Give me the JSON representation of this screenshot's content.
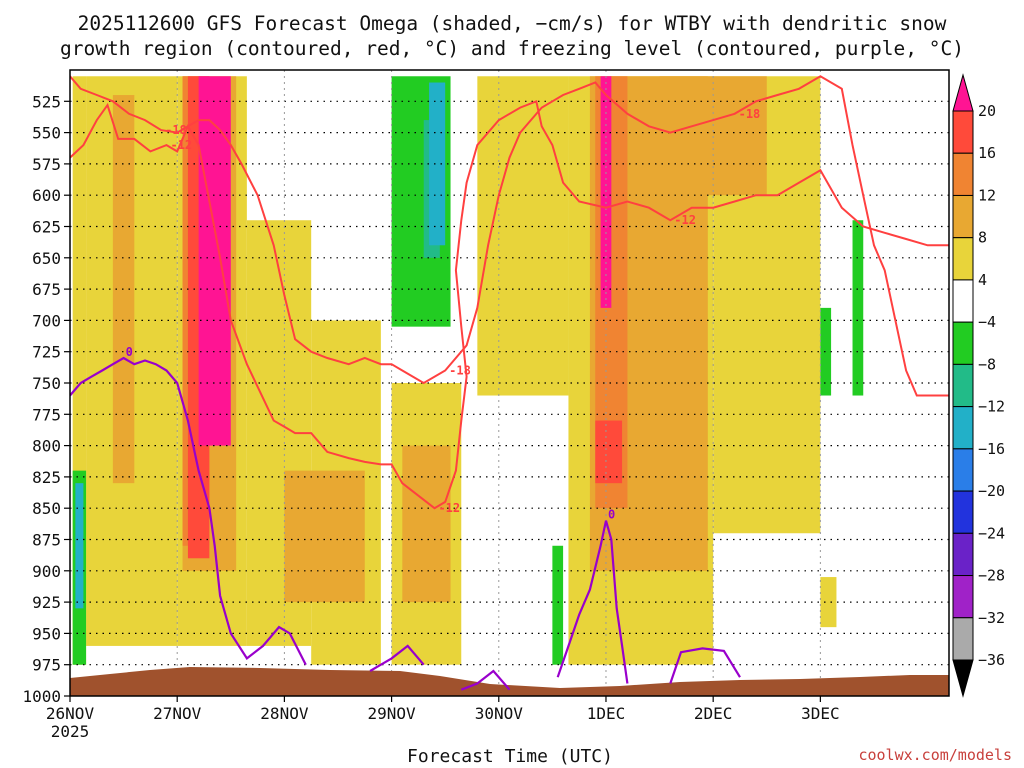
{
  "chart_data": {
    "type": "time-height contour plot",
    "title_lines": [
      "2025112600 GFS Forecast Omega (shaded, −cm/s) for WTBY with dendritic snow",
      "growth region (contoured, red, °C) and freezing level (contoured, purple, °C)"
    ],
    "xlabel": "Forecast Time (UTC)",
    "ylabel": "",
    "credit": "coolwx.com/models",
    "x_range_hours": [
      0,
      164
    ],
    "x_ticks": [
      {
        "hour": 0,
        "label": "26NOV",
        "sublabel": "2025"
      },
      {
        "hour": 20,
        "label": "27NOV"
      },
      {
        "hour": 40,
        "label": "28NOV"
      },
      {
        "hour": 60,
        "label": "29NOV"
      },
      {
        "hour": 80,
        "label": "30NOV"
      },
      {
        "hour": 100,
        "label": "1DEC"
      },
      {
        "hour": 120,
        "label": "2DEC"
      },
      {
        "hour": 140,
        "label": "3DEC"
      }
    ],
    "y_range_hpa": [
      500,
      1000
    ],
    "y_ticks": [
      "525",
      "550",
      "575",
      "600",
      "625",
      "650",
      "675",
      "700",
      "725",
      "750",
      "775",
      "800",
      "825",
      "850",
      "875",
      "900",
      "925",
      "950",
      "975",
      "1000"
    ],
    "colorbar": {
      "labels": [
        "20",
        "16",
        "12",
        "8",
        "4",
        "−4",
        "−8",
        "−12",
        "−16",
        "−20",
        "−24",
        "−28",
        "−32",
        "−36"
      ],
      "colors": [
        "#ff1493",
        "#ff4a3a",
        "#f08432",
        "#e8a832",
        "#e8d43a",
        "#ffffff",
        "#22cc22",
        "#22bb88",
        "#22b0c8",
        "#2a7ee8",
        "#2233dd",
        "#6a22c8",
        "#a022c8",
        "#aaaaaa",
        "#000000"
      ]
    },
    "omega_regions": [
      {
        "color": "#e8d43a",
        "t0": 0.5,
        "t1": 3,
        "p0": 505,
        "p1": 975
      },
      {
        "color": "#e8d43a",
        "t0": 3,
        "t1": 20,
        "p0": 505,
        "p1": 960
      },
      {
        "color": "#e8a832",
        "t0": 8,
        "t1": 12,
        "p0": 520,
        "p1": 830
      },
      {
        "color": "#e8d43a",
        "t0": 20,
        "t1": 33,
        "p0": 505,
        "p1": 960
      },
      {
        "color": "#e8a832",
        "t0": 21,
        "t1": 31,
        "p0": 505,
        "p1": 900
      },
      {
        "color": "#f08432",
        "t0": 21,
        "t1": 26,
        "p0": 505,
        "p1": 880
      },
      {
        "color": "#ff4a3a",
        "t0": 22,
        "t1": 26,
        "p0": 505,
        "p1": 890
      },
      {
        "color": "#ff1493",
        "t0": 24,
        "t1": 30,
        "p0": 505,
        "p1": 800
      },
      {
        "color": "#e8d43a",
        "t0": 33,
        "t1": 45,
        "p0": 620,
        "p1": 960
      },
      {
        "color": "#e8d43a",
        "t0": 45,
        "t1": 58,
        "p0": 700,
        "p1": 975
      },
      {
        "color": "#e8a832",
        "t0": 40,
        "t1": 55,
        "p0": 820,
        "p1": 925
      },
      {
        "color": "#e8d43a",
        "t0": 60,
        "t1": 73,
        "p0": 750,
        "p1": 975
      },
      {
        "color": "#e8a832",
        "t0": 62,
        "t1": 71,
        "p0": 800,
        "p1": 925
      },
      {
        "color": "#22cc22",
        "t0": 60,
        "t1": 71,
        "p0": 505,
        "p1": 705
      },
      {
        "color": "#22bb88",
        "t0": 66,
        "t1": 69,
        "p0": 540,
        "p1": 650
      },
      {
        "color": "#22b0c8",
        "t0": 67,
        "t1": 70,
        "p0": 510,
        "p1": 640
      },
      {
        "color": "#e8d43a",
        "t0": 76,
        "t1": 93,
        "p0": 505,
        "p1": 760
      },
      {
        "color": "#e8d43a",
        "t0": 93,
        "t1": 120,
        "p0": 505,
        "p1": 975
      },
      {
        "color": "#e8a832",
        "t0": 97,
        "t1": 119,
        "p0": 505,
        "p1": 900
      },
      {
        "color": "#f08432",
        "t0": 98,
        "t1": 104,
        "p0": 505,
        "p1": 850
      },
      {
        "color": "#ff4a3a",
        "t0": 98,
        "t1": 103,
        "p0": 780,
        "p1": 830
      },
      {
        "color": "#ff1493",
        "t0": 99,
        "t1": 101,
        "p0": 505,
        "p1": 690
      },
      {
        "color": "#22cc22",
        "t0": 90,
        "t1": 92,
        "p0": 880,
        "p1": 975
      },
      {
        "color": "#e8d43a",
        "t0": 120,
        "t1": 140,
        "p0": 505,
        "p1": 870
      },
      {
        "color": "#e8a832",
        "t0": 110,
        "t1": 130,
        "p0": 505,
        "p1": 600
      },
      {
        "color": "#22cc22",
        "t0": 140,
        "t1": 142,
        "p0": 690,
        "p1": 760
      },
      {
        "color": "#22cc22",
        "t0": 146,
        "t1": 148,
        "p0": 620,
        "p1": 760
      },
      {
        "color": "#e8d43a",
        "t0": 140,
        "t1": 143,
        "p0": 905,
        "p1": 945
      },
      {
        "color": "#22cc22",
        "t0": 0.5,
        "t1": 3,
        "p0": 820,
        "p1": 975
      },
      {
        "color": "#22b0c8",
        "t0": 1,
        "t1": 2.5,
        "p0": 830,
        "p1": 930
      }
    ],
    "dgz_contours": [
      {
        "label": "-12",
        "points": [
          [
            0,
            570
          ],
          [
            2.5,
            560
          ],
          [
            5,
            540
          ],
          [
            7,
            528
          ],
          [
            9,
            555
          ],
          [
            12,
            555
          ],
          [
            15,
            565
          ],
          [
            18,
            560
          ],
          [
            20,
            565
          ],
          [
            22,
            545
          ],
          [
            24,
            560
          ],
          [
            26,
            605
          ],
          [
            28,
            650
          ],
          [
            30,
            700
          ],
          [
            33,
            735
          ],
          [
            38,
            780
          ],
          [
            40,
            785
          ],
          [
            42,
            790
          ],
          [
            45,
            790
          ],
          [
            48,
            805
          ],
          [
            52,
            810
          ],
          [
            55,
            813
          ],
          [
            58,
            815
          ],
          [
            60,
            815
          ],
          [
            62,
            830
          ],
          [
            65,
            840
          ],
          [
            68,
            850
          ],
          [
            70,
            845
          ],
          [
            72,
            820
          ],
          [
            73,
            780
          ],
          [
            74,
            745
          ],
          [
            73,
            705
          ],
          [
            72,
            660
          ],
          [
            73,
            620
          ],
          [
            74,
            590
          ],
          [
            76,
            560
          ],
          [
            80,
            540
          ],
          [
            84,
            530
          ],
          [
            87,
            525
          ],
          [
            88,
            545
          ],
          [
            90,
            560
          ],
          [
            92,
            590
          ],
          [
            95,
            605
          ],
          [
            100,
            610
          ],
          [
            104,
            605
          ],
          [
            108,
            610
          ],
          [
            112,
            620
          ],
          [
            116,
            610
          ],
          [
            120,
            610
          ],
          [
            124,
            605
          ],
          [
            128,
            600
          ],
          [
            132,
            600
          ],
          [
            136,
            590
          ],
          [
            140,
            580
          ],
          [
            144,
            610
          ],
          [
            148,
            625
          ],
          [
            152,
            630
          ],
          [
            156,
            635
          ],
          [
            160,
            640
          ],
          [
            164,
            640
          ]
        ]
      },
      {
        "label": "-18",
        "points": [
          [
            0,
            505
          ],
          [
            2,
            515
          ],
          [
            5,
            520
          ],
          [
            8,
            525
          ],
          [
            11,
            535
          ],
          [
            14,
            540
          ],
          [
            17,
            548
          ],
          [
            20,
            550
          ],
          [
            22,
            545
          ],
          [
            24,
            540
          ],
          [
            26,
            540
          ],
          [
            28,
            548
          ],
          [
            30,
            560
          ],
          [
            32,
            575
          ],
          [
            35,
            600
          ],
          [
            38,
            640
          ],
          [
            40,
            680
          ],
          [
            42,
            715
          ],
          [
            45,
            725
          ],
          [
            48,
            730
          ],
          [
            52,
            735
          ],
          [
            55,
            730
          ],
          [
            58,
            735
          ],
          [
            60,
            735
          ],
          [
            62,
            740
          ],
          [
            66,
            750
          ],
          [
            70,
            740
          ],
          [
            74,
            720
          ],
          [
            76,
            690
          ],
          [
            78,
            640
          ],
          [
            80,
            600
          ],
          [
            82,
            570
          ],
          [
            84,
            550
          ],
          [
            86,
            540
          ],
          [
            88,
            530
          ],
          [
            90,
            525
          ],
          [
            92,
            520
          ],
          [
            95,
            515
          ],
          [
            98,
            510
          ],
          [
            100,
            520
          ],
          [
            104,
            535
          ],
          [
            108,
            545
          ],
          [
            112,
            550
          ],
          [
            116,
            545
          ],
          [
            120,
            540
          ],
          [
            124,
            535
          ],
          [
            128,
            525
          ],
          [
            132,
            520
          ],
          [
            136,
            515
          ],
          [
            140,
            505
          ],
          [
            144,
            515
          ],
          [
            146,
            560
          ],
          [
            148,
            600
          ],
          [
            150,
            640
          ],
          [
            152,
            660
          ],
          [
            154,
            700
          ],
          [
            156,
            740
          ],
          [
            158,
            760
          ],
          [
            164,
            760
          ]
        ]
      }
    ],
    "freezing_level": {
      "label": "0",
      "segments": [
        [
          [
            0,
            760
          ],
          [
            2,
            750
          ],
          [
            4,
            745
          ],
          [
            6,
            740
          ],
          [
            8,
            735
          ],
          [
            10,
            730
          ],
          [
            12,
            735
          ],
          [
            14,
            732
          ],
          [
            16,
            735
          ],
          [
            18,
            740
          ],
          [
            20,
            750
          ],
          [
            22,
            780
          ],
          [
            24,
            820
          ],
          [
            26,
            850
          ],
          [
            27,
            880
          ],
          [
            28,
            920
          ],
          [
            30,
            950
          ],
          [
            33,
            970
          ],
          [
            36,
            960
          ],
          [
            39,
            945
          ],
          [
            41,
            950
          ],
          [
            44,
            975
          ]
        ],
        [
          [
            56,
            980
          ],
          [
            60,
            970
          ],
          [
            63,
            960
          ],
          [
            66,
            975
          ]
        ],
        [
          [
            73,
            995
          ],
          [
            76,
            990
          ],
          [
            79,
            980
          ],
          [
            82,
            995
          ]
        ],
        [
          [
            91,
            985
          ],
          [
            93,
            960
          ],
          [
            95,
            935
          ],
          [
            97,
            915
          ],
          [
            99,
            880
          ],
          [
            100,
            860
          ],
          [
            101,
            875
          ],
          [
            102,
            930
          ],
          [
            103,
            960
          ],
          [
            104,
            990
          ]
        ],
        [
          [
            112,
            990
          ],
          [
            114,
            965
          ],
          [
            118,
            962
          ],
          [
            122,
            964
          ],
          [
            125,
            985
          ]
        ]
      ]
    }
  }
}
